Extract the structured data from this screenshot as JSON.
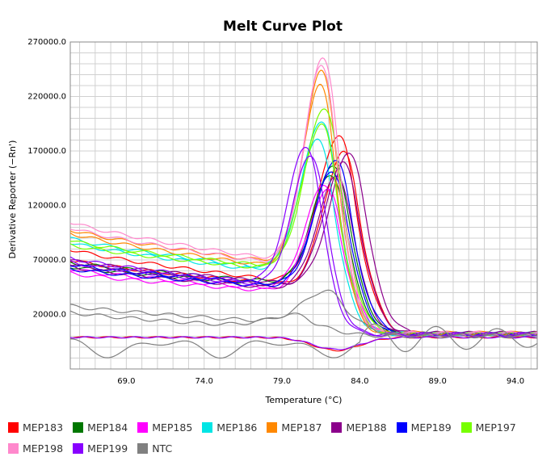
{
  "chart_data": {
    "type": "line",
    "title": "Melt Curve Plot",
    "xlabel": "Temperature (°C)",
    "ylabel": "Derivative Reporter (−Rn')",
    "xlim": [
      65.4,
      95.4
    ],
    "ylim": [
      -30000,
      270000
    ],
    "x_ticks": [
      69.0,
      74.0,
      79.0,
      84.0,
      89.0,
      94.0
    ],
    "x_tick_labels": [
      "69.0",
      "74.0",
      "79.0",
      "84.0",
      "89.0",
      "94.0"
    ],
    "y_ticks": [
      20000,
      70000,
      120000,
      170000,
      220000,
      270000
    ],
    "y_tick_labels": [
      "20000.0",
      "70000.0",
      "120000.0",
      "170000.0",
      "220000.0",
      "270000.0"
    ],
    "grid": true,
    "legend_position": "bottom",
    "series": [
      {
        "name": "MEP183",
        "color": "#ff0000",
        "curves": [
          {
            "start": 80000,
            "dip": 48000,
            "peak": 186000,
            "tm": 82.7,
            "width": 1.35,
            "end": 3000
          },
          {
            "start": 70000,
            "dip": 45000,
            "peak": 170000,
            "tm": 83.0,
            "width": 1.3,
            "end": 2000
          },
          {
            "start": -1000,
            "dip": -1000,
            "peak": 0,
            "tm": 82.5,
            "width": 1.5,
            "end": 0,
            "trough": -12000
          }
        ]
      },
      {
        "name": "MEP184",
        "color": "#007700",
        "curves": [
          {
            "start": 68000,
            "dip": 48000,
            "peak": 158000,
            "tm": 82.4,
            "width": 1.3,
            "end": 2500
          },
          {
            "start": 64000,
            "dip": 46000,
            "peak": 150000,
            "tm": 82.2,
            "width": 1.3,
            "end": 2000
          }
        ]
      },
      {
        "name": "MEP185",
        "color": "#ff00ff",
        "curves": [
          {
            "start": 62000,
            "dip": 42000,
            "peak": 140000,
            "tm": 81.8,
            "width": 1.3,
            "end": 2000
          },
          {
            "start": 58000,
            "dip": 40000,
            "peak": 135000,
            "tm": 82.0,
            "width": 1.3,
            "end": 1500
          }
        ]
      },
      {
        "name": "MEP186",
        "color": "#00e5e5",
        "curves": [
          {
            "start": 90000,
            "dip": 60000,
            "peak": 200000,
            "tm": 81.6,
            "width": 1.3,
            "end": 2500
          },
          {
            "start": 86000,
            "dip": 58000,
            "peak": 182000,
            "tm": 81.4,
            "width": 1.3,
            "end": 2000
          }
        ]
      },
      {
        "name": "MEP187",
        "color": "#ff8800",
        "curves": [
          {
            "start": 98000,
            "dip": 66000,
            "peak": 245000,
            "tm": 81.6,
            "width": 1.2,
            "end": 3000
          },
          {
            "start": 95000,
            "dip": 62000,
            "peak": 232000,
            "tm": 81.5,
            "width": 1.2,
            "end": 2500
          }
        ]
      },
      {
        "name": "MEP188",
        "color": "#8b008b",
        "curves": [
          {
            "start": 70000,
            "dip": 46000,
            "peak": 170000,
            "tm": 83.4,
            "width": 1.3,
            "end": 3000
          },
          {
            "start": 66000,
            "dip": 44000,
            "peak": 160000,
            "tm": 83.0,
            "width": 1.3,
            "end": 2500
          },
          {
            "start": 64000,
            "dip": 42000,
            "peak": 148000,
            "tm": 82.6,
            "width": 1.3,
            "end": 2000
          }
        ]
      },
      {
        "name": "MEP189",
        "color": "#0000ff",
        "curves": [
          {
            "start": 66000,
            "dip": 46000,
            "peak": 164000,
            "tm": 82.5,
            "width": 1.3,
            "end": 2500
          },
          {
            "start": 62000,
            "dip": 44000,
            "peak": 152000,
            "tm": 82.3,
            "width": 1.3,
            "end": 2000
          }
        ]
      },
      {
        "name": "MEP197",
        "color": "#77ff00",
        "curves": [
          {
            "start": 88000,
            "dip": 62000,
            "peak": 212000,
            "tm": 81.8,
            "width": 1.3,
            "end": 2500
          },
          {
            "start": 84000,
            "dip": 60000,
            "peak": 196000,
            "tm": 81.6,
            "width": 1.3,
            "end": 2000
          }
        ]
      },
      {
        "name": "MEP198",
        "color": "#ff88cc",
        "curves": [
          {
            "start": 105000,
            "dip": 68000,
            "peak": 258000,
            "tm": 81.7,
            "width": 1.2,
            "end": 3000
          },
          {
            "start": 100000,
            "dip": 65000,
            "peak": 250000,
            "tm": 81.6,
            "width": 1.2,
            "end": 2500
          }
        ]
      },
      {
        "name": "MEP199",
        "color": "#8800ff",
        "curves": [
          {
            "start": 72000,
            "dip": 48000,
            "peak": 176000,
            "tm": 80.6,
            "width": 1.2,
            "end": 2000
          },
          {
            "start": 68000,
            "dip": 46000,
            "peak": 168000,
            "tm": 80.9,
            "width": 1.2,
            "end": 1500
          },
          {
            "start": -1000,
            "dip": -1000,
            "peak": 0,
            "tm": 82.5,
            "width": 1.5,
            "end": 0,
            "trough": -11000
          }
        ]
      },
      {
        "name": "NTC",
        "color": "#808080",
        "curves": [
          {
            "start": 28000,
            "dip": 12000,
            "peak": 42000,
            "tm": 81.9,
            "width": 1.6,
            "end": 1000
          },
          {
            "start": 22000,
            "dip": 8000,
            "peak": 20000,
            "tm": 80.0,
            "width": 2.0,
            "end": 0
          },
          {
            "start": -10000,
            "dip": 0,
            "peak": 0,
            "tm": 80.0,
            "width": 2.0,
            "end": -18000,
            "noise": true
          }
        ]
      }
    ]
  },
  "legend": {
    "rows": [
      [
        "MEP183",
        "MEP184",
        "MEP185",
        "MEP186",
        "MEP187",
        "MEP188",
        "MEP189",
        "MEP197"
      ],
      [
        "MEP198",
        "MEP199",
        "NTC"
      ]
    ]
  }
}
